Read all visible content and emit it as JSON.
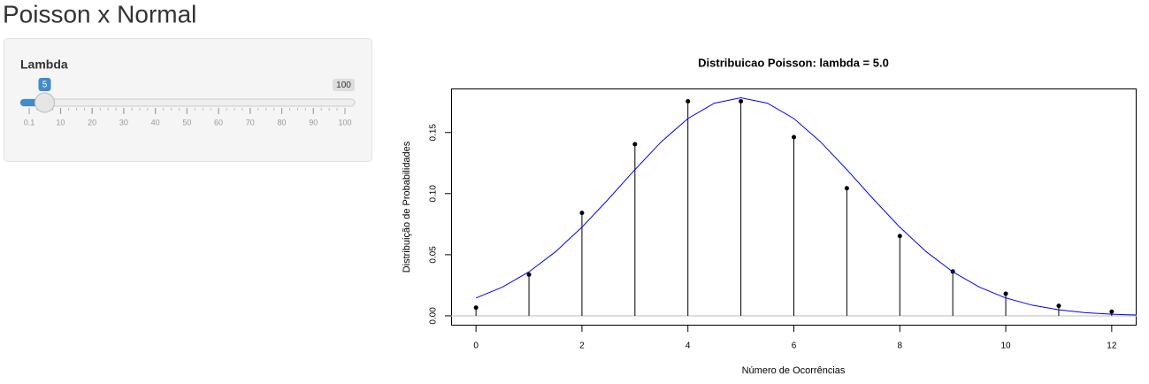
{
  "header": {
    "title": "Poisson x Normal"
  },
  "sidebar": {
    "label": "Lambda",
    "slider": {
      "min": 0.1,
      "max": 100,
      "value": 5,
      "ticks": [
        0.1,
        10,
        20,
        30,
        40,
        50,
        60,
        70,
        80,
        90,
        100
      ]
    }
  },
  "chart_data": {
    "type": "stem",
    "title": "Distribuicao Poisson:  lambda = 5.0",
    "x_label": "Número de Ocorrências",
    "y_label": "Distribuição de Probabilidades",
    "xlim": [
      -0.47,
      12.47
    ],
    "ylim": [
      -0.008,
      0.186
    ],
    "xticks": [
      0,
      2,
      4,
      6,
      8,
      10,
      12
    ],
    "yticks": [
      {
        "value": 0,
        "label": "0.00"
      },
      {
        "value": 0.05,
        "label": "0.05"
      },
      {
        "value": 0.1,
        "label": "0.10"
      },
      {
        "value": 0.15,
        "label": "0.15"
      }
    ],
    "hline": 0,
    "hline_color": "#bbbbbb",
    "series": [
      {
        "type": "stem",
        "color": "#000000",
        "x": [
          0,
          1,
          2,
          3,
          4,
          5,
          6,
          7,
          8,
          9,
          10,
          11,
          12
        ],
        "values": [
          0.0067,
          0.0337,
          0.0842,
          0.1404,
          0.1755,
          0.1755,
          0.1462,
          0.1044,
          0.0653,
          0.0363,
          0.0181,
          0.0082,
          0.0034
        ]
      },
      {
        "type": "line",
        "color": "#0000ff",
        "x": [
          0,
          0.5,
          1,
          1.5,
          2,
          2.5,
          3,
          3.5,
          4,
          4.5,
          5,
          5.5,
          6,
          6.5,
          7,
          7.5,
          8,
          8.5,
          9,
          9.5,
          10,
          10.5,
          11,
          11.5,
          12,
          12.5
        ],
        "values": [
          0.0146,
          0.0235,
          0.036,
          0.0524,
          0.0725,
          0.0955,
          0.1196,
          0.1425,
          0.1614,
          0.174,
          0.1784,
          0.174,
          0.1614,
          0.1425,
          0.1196,
          0.0955,
          0.0725,
          0.0524,
          0.036,
          0.0235,
          0.0146,
          0.0087,
          0.0049,
          0.0026,
          0.0013,
          0.0006
        ]
      }
    ]
  }
}
